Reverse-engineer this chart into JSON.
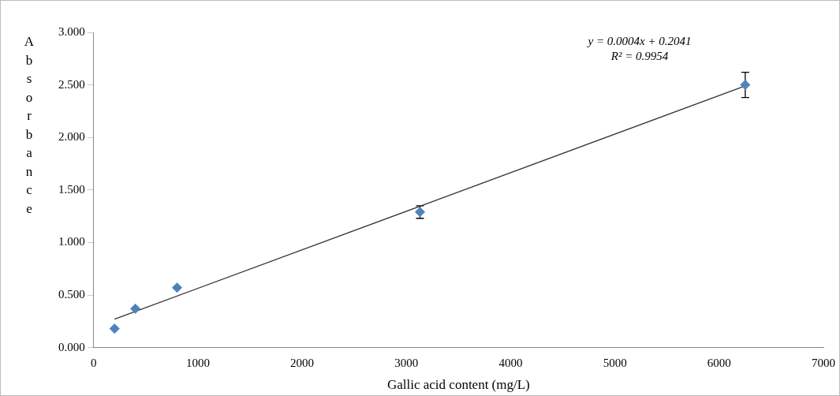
{
  "chart_data": {
    "type": "scatter",
    "xlabel": "Gallic acid content (mg/L)",
    "ylabel": "Absorbance",
    "xlim": [
      0,
      7000
    ],
    "xticks": [
      0,
      1000,
      2000,
      3000,
      4000,
      5000,
      6000,
      7000
    ],
    "ylim": [
      0,
      3
    ],
    "yticks": [
      {
        "value": 0,
        "label": "0.000"
      },
      {
        "value": 0.5,
        "label": "0.500"
      },
      {
        "value": 1,
        "label": "1.000"
      },
      {
        "value": 1.5,
        "label": "1.500"
      },
      {
        "value": 2,
        "label": "2.000"
      },
      {
        "value": 2.5,
        "label": "2.500"
      },
      {
        "value": 3,
        "label": "3.000"
      }
    ],
    "grid": false,
    "legend": false,
    "series": [
      {
        "marker": "diamond",
        "color": "#4f81bd",
        "x": [
          200,
          400,
          800,
          3130,
          6250
        ],
        "values": [
          0.18,
          0.37,
          0.57,
          1.29,
          2.5
        ],
        "errors": [
          null,
          null,
          null,
          0.06,
          0.12
        ]
      },
      {
        "type": "line",
        "color": "#333333",
        "x": [
          200,
          6250
        ],
        "values": [
          0.27,
          2.49
        ]
      }
    ],
    "annotations": [
      "y = 0.0004x + 0.2041",
      "R² = 0.9954"
    ]
  }
}
